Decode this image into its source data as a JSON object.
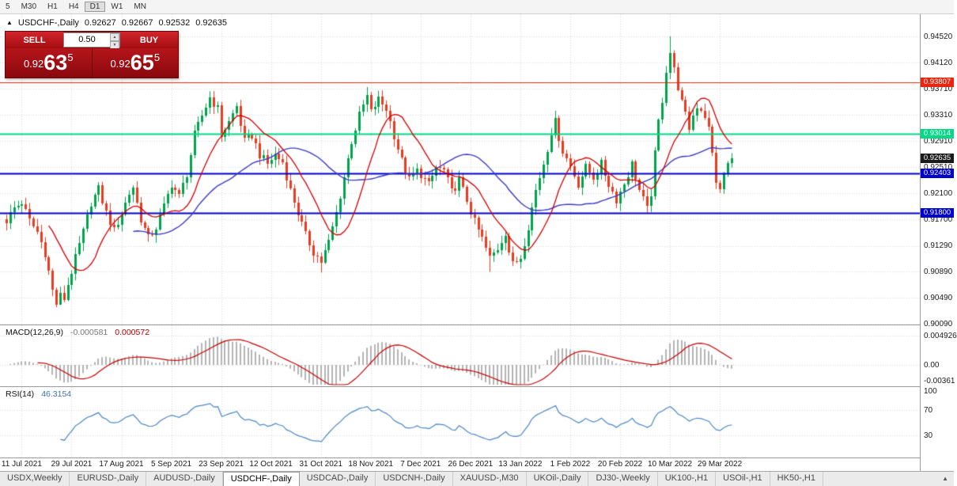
{
  "toolbar": {
    "timeframes": [
      {
        "label": "5",
        "active": false
      },
      {
        "label": "M30",
        "active": false
      },
      {
        "label": "H1",
        "active": false
      },
      {
        "label": "H4",
        "active": false
      },
      {
        "label": "D1",
        "active": true
      },
      {
        "label": "W1",
        "active": false
      },
      {
        "label": "MN",
        "active": false
      }
    ]
  },
  "chart_header": {
    "marker": "▲",
    "symbol": "USDCHF-,Daily",
    "open": "0.92627",
    "high": "0.92667",
    "low": "0.92532",
    "close": "0.92635"
  },
  "trade_panel": {
    "sell_label": "SELL",
    "buy_label": "BUY",
    "volume": "0.50",
    "sell_price": {
      "prefix": "0.92",
      "big": "63",
      "sup": "5"
    },
    "buy_price": {
      "prefix": "0.92",
      "big": "65",
      "sup": "5"
    }
  },
  "price_axis": {
    "labels": [
      "0.94520",
      "0.94120",
      "0.93710",
      "0.93310",
      "0.92910",
      "0.92510",
      "0.92100",
      "0.91700",
      "0.91290",
      "0.90890",
      "0.90490",
      "0.90090"
    ]
  },
  "date_axis": {
    "labels": [
      "11 Jul 2021",
      "29 Jul 2021",
      "17 Aug 2021",
      "5 Sep 2021",
      "23 Sep 2021",
      "12 Oct 2021",
      "31 Oct 2021",
      "18 Nov 2021",
      "7 Dec 2021",
      "26 Dec 2021",
      "13 Jan 2022",
      "1 Feb 2022",
      "20 Feb 2022",
      "10 Mar 2022",
      "29 Mar 2022"
    ]
  },
  "levels": [
    {
      "price": "0.93807",
      "value": 0.93807,
      "color": "#e8250f",
      "width": 1
    },
    {
      "price": "0.93014",
      "value": 0.93014,
      "color": "#00d985",
      "width": 2
    },
    {
      "price": "0.92403",
      "value": 0.92403,
      "color": "#0000cd",
      "width": 2
    },
    {
      "price": "0.91800",
      "value": 0.918,
      "color": "#0000cd",
      "width": 2
    }
  ],
  "current_price": {
    "label": "0.92635",
    "value": 0.92635,
    "color": "#1a1a1a"
  },
  "macd_panel": {
    "name": "MACD(12,26,9)",
    "value_main": "-0.000581",
    "value_signal": "0.000572",
    "axis_labels": [
      "0.004926",
      "0.00",
      "-0.00361"
    ],
    "axis_values": [
      0.004926,
      0,
      -0.00361
    ]
  },
  "rsi_panel": {
    "name": "RSI(14)",
    "value": "46.3154",
    "axis_labels": [
      "100",
      "70",
      "30"
    ],
    "axis_values": [
      100,
      70,
      30
    ]
  },
  "tabs": {
    "active": "USDCHF-,Daily",
    "items": [
      "USDX,Weekly",
      "EURUSD-,Daily",
      "AUDUSD-,Daily",
      "USDCHF-,Daily",
      "USDCAD-,Daily",
      "USDCNH-,Daily",
      "XAUUSD-,M30",
      "UKOil-,Daily",
      "DJ30-,Weekly",
      "UK100-,H1",
      "USOil-,H1",
      "HK50-,H1"
    ]
  },
  "chart_data": {
    "type": "candlestick",
    "symbol": "USDCHF-",
    "timeframe": "Daily",
    "n_candles": 190,
    "y_min": 0.9009,
    "y_max": 0.9452,
    "high_extreme": 0.9452,
    "low_extreme": 0.9037,
    "up_color": "#00a24d",
    "down_color": "#e73c21",
    "ma_fast_color": "#d40000",
    "ma_slow_color": "#3a3ac6",
    "macd_bar_color": "#b4b4b4",
    "macd_signal_color": "#c80000",
    "rsi_color": "#4a86c8",
    "close_anchors": [
      [
        0,
        0.9168
      ],
      [
        2,
        0.9188
      ],
      [
        4,
        0.9196
      ],
      [
        6,
        0.9168
      ],
      [
        8,
        0.915
      ],
      [
        10,
        0.9118
      ],
      [
        12,
        0.906
      ],
      [
        13,
        0.904
      ],
      [
        14,
        0.9052
      ],
      [
        15,
        0.9048
      ],
      [
        16,
        0.907
      ],
      [
        18,
        0.911
      ],
      [
        20,
        0.915
      ],
      [
        22,
        0.9196
      ],
      [
        24,
        0.9216
      ],
      [
        26,
        0.918
      ],
      [
        28,
        0.9152
      ],
      [
        30,
        0.918
      ],
      [
        32,
        0.921
      ],
      [
        33,
        0.922
      ],
      [
        35,
        0.917
      ],
      [
        37,
        0.914
      ],
      [
        39,
        0.9158
      ],
      [
        41,
        0.919
      ],
      [
        43,
        0.9225
      ],
      [
        45,
        0.9205
      ],
      [
        47,
        0.924
      ],
      [
        49,
        0.93
      ],
      [
        51,
        0.933
      ],
      [
        53,
        0.9358
      ],
      [
        55,
        0.934
      ],
      [
        56,
        0.93
      ],
      [
        58,
        0.932
      ],
      [
        60,
        0.9345
      ],
      [
        62,
        0.929
      ],
      [
        64,
        0.93
      ],
      [
        66,
        0.927
      ],
      [
        68,
        0.9255
      ],
      [
        70,
        0.927
      ],
      [
        72,
        0.9258
      ],
      [
        74,
        0.9215
      ],
      [
        76,
        0.918
      ],
      [
        78,
        0.9145
      ],
      [
        80,
        0.912
      ],
      [
        82,
        0.9105
      ],
      [
        84,
        0.9135
      ],
      [
        86,
        0.918
      ],
      [
        88,
        0.9235
      ],
      [
        90,
        0.929
      ],
      [
        92,
        0.933
      ],
      [
        94,
        0.936
      ],
      [
        95,
        0.9335
      ],
      [
        97,
        0.9355
      ],
      [
        99,
        0.934
      ],
      [
        101,
        0.93
      ],
      [
        103,
        0.926
      ],
      [
        105,
        0.923
      ],
      [
        107,
        0.9245
      ],
      [
        108,
        0.924
      ],
      [
        110,
        0.9222
      ],
      [
        112,
        0.925
      ],
      [
        114,
        0.9245
      ],
      [
        116,
        0.9212
      ],
      [
        118,
        0.923
      ],
      [
        120,
        0.92
      ],
      [
        122,
        0.9165
      ],
      [
        124,
        0.914
      ],
      [
        126,
        0.911
      ],
      [
        128,
        0.9125
      ],
      [
        130,
        0.915
      ],
      [
        131,
        0.912
      ],
      [
        132,
        0.91
      ],
      [
        134,
        0.9112
      ],
      [
        136,
        0.916
      ],
      [
        138,
        0.9215
      ],
      [
        140,
        0.9256
      ],
      [
        142,
        0.9305
      ],
      [
        143,
        0.932
      ],
      [
        145,
        0.9275
      ],
      [
        147,
        0.9252
      ],
      [
        149,
        0.9225
      ],
      [
        151,
        0.925
      ],
      [
        153,
        0.9235
      ],
      [
        155,
        0.9255
      ],
      [
        157,
        0.9225
      ],
      [
        159,
        0.92
      ],
      [
        161,
        0.9225
      ],
      [
        163,
        0.9255
      ],
      [
        165,
        0.9215
      ],
      [
        167,
        0.9185
      ],
      [
        168,
        0.921
      ],
      [
        169,
        0.927
      ],
      [
        170,
        0.932
      ],
      [
        171,
        0.9355
      ],
      [
        172,
        0.94
      ],
      [
        173,
        0.9428
      ],
      [
        174,
        0.94
      ],
      [
        175,
        0.9375
      ],
      [
        176,
        0.935
      ],
      [
        177,
        0.933
      ],
      [
        178,
        0.931
      ],
      [
        179,
        0.933
      ],
      [
        180,
        0.9345
      ],
      [
        181,
        0.934
      ],
      [
        182,
        0.933
      ],
      [
        183,
        0.931
      ],
      [
        184,
        0.927
      ],
      [
        185,
        0.923
      ],
      [
        186,
        0.9212
      ],
      [
        187,
        0.924
      ],
      [
        188,
        0.9255
      ],
      [
        189,
        0.92635
      ]
    ]
  }
}
